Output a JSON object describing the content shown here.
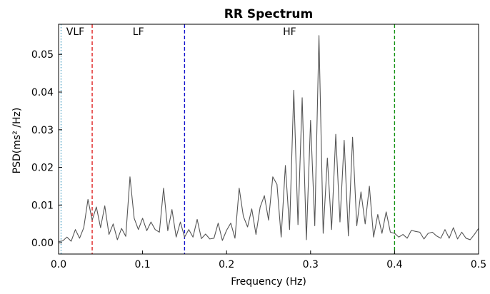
{
  "chart_data": {
    "type": "line",
    "title": "RR Spectrum",
    "xlabel": "Frequency (Hz)",
    "ylabel": "PSD(ms² /Hz)",
    "xlim": [
      0.0,
      0.5
    ],
    "ylim": [
      -0.003,
      0.058
    ],
    "xticks": [
      0.0,
      0.1,
      0.2,
      0.3,
      0.4,
      0.5
    ],
    "xtick_labels": [
      "0.0",
      "0.1",
      "0.2",
      "0.3",
      "0.4",
      "0.5"
    ],
    "yticks": [
      0.0,
      0.01,
      0.02,
      0.03,
      0.04,
      0.05
    ],
    "ytick_labels": [
      "0.00",
      "0.01",
      "0.02",
      "0.03",
      "0.04",
      "0.05"
    ],
    "grid": false,
    "line_color": "#555555",
    "band_lines": [
      {
        "x": 0.003,
        "color": "#5aa8c8",
        "style": "dotted"
      },
      {
        "x": 0.04,
        "color": "#e02020",
        "style": "dashed"
      },
      {
        "x": 0.15,
        "color": "#1010cc",
        "style": "dashed"
      },
      {
        "x": 0.4,
        "color": "#109010",
        "style": "dashed"
      }
    ],
    "band_labels": [
      {
        "text": "VLF",
        "x": 0.02
      },
      {
        "text": "LF",
        "x": 0.095
      },
      {
        "text": "HF",
        "x": 0.275
      }
    ],
    "x": [
      0.0,
      0.005,
      0.01,
      0.015,
      0.02,
      0.025,
      0.03,
      0.035,
      0.04,
      0.045,
      0.05,
      0.055,
      0.06,
      0.065,
      0.07,
      0.075,
      0.08,
      0.085,
      0.09,
      0.095,
      0.1,
      0.105,
      0.11,
      0.115,
      0.12,
      0.125,
      0.13,
      0.135,
      0.14,
      0.145,
      0.15,
      0.155,
      0.16,
      0.165,
      0.17,
      0.175,
      0.18,
      0.185,
      0.19,
      0.195,
      0.2,
      0.205,
      0.21,
      0.215,
      0.22,
      0.225,
      0.23,
      0.235,
      0.24,
      0.245,
      0.25,
      0.255,
      0.26,
      0.265,
      0.27,
      0.275,
      0.28,
      0.285,
      0.29,
      0.295,
      0.3,
      0.305,
      0.31,
      0.315,
      0.32,
      0.325,
      0.33,
      0.335,
      0.34,
      0.345,
      0.35,
      0.355,
      0.36,
      0.365,
      0.37,
      0.375,
      0.38,
      0.385,
      0.39,
      0.395,
      0.4,
      0.405,
      0.41,
      0.415,
      0.42,
      0.425,
      0.43,
      0.435,
      0.44,
      0.445,
      0.45,
      0.455,
      0.46,
      0.465,
      0.47,
      0.475,
      0.48,
      0.485,
      0.49,
      0.495,
      0.5
    ],
    "y": [
      0.0003,
      0.0005,
      0.0015,
      0.0004,
      0.0035,
      0.0012,
      0.004,
      0.0115,
      0.006,
      0.0095,
      0.004,
      0.0098,
      0.0022,
      0.005,
      0.0008,
      0.0038,
      0.0017,
      0.0175,
      0.0065,
      0.0035,
      0.0065,
      0.0032,
      0.0055,
      0.0035,
      0.0028,
      0.0145,
      0.0032,
      0.0088,
      0.0015,
      0.0055,
      0.0015,
      0.0035,
      0.0015,
      0.0062,
      0.0011,
      0.0023,
      0.001,
      0.0012,
      0.0052,
      0.0006,
      0.0033,
      0.0052,
      0.0012,
      0.0145,
      0.007,
      0.0042,
      0.009,
      0.0022,
      0.0095,
      0.0125,
      0.006,
      0.0175,
      0.0155,
      0.0015,
      0.0205,
      0.0035,
      0.0405,
      0.0048,
      0.0385,
      0.0008,
      0.0325,
      0.0045,
      0.055,
      0.0025,
      0.0225,
      0.0035,
      0.0288,
      0.0055,
      0.0272,
      0.0018,
      0.028,
      0.0045,
      0.0135,
      0.005,
      0.015,
      0.0015,
      0.0075,
      0.0025,
      0.0082,
      0.0028,
      0.0025,
      0.0015,
      0.0022,
      0.0012,
      0.0033,
      0.003,
      0.0028,
      0.001,
      0.0025,
      0.0028,
      0.0018,
      0.0012,
      0.0035,
      0.0012,
      0.004,
      0.001,
      0.0028,
      0.0012,
      0.0008,
      0.0022,
      0.0038
    ]
  }
}
